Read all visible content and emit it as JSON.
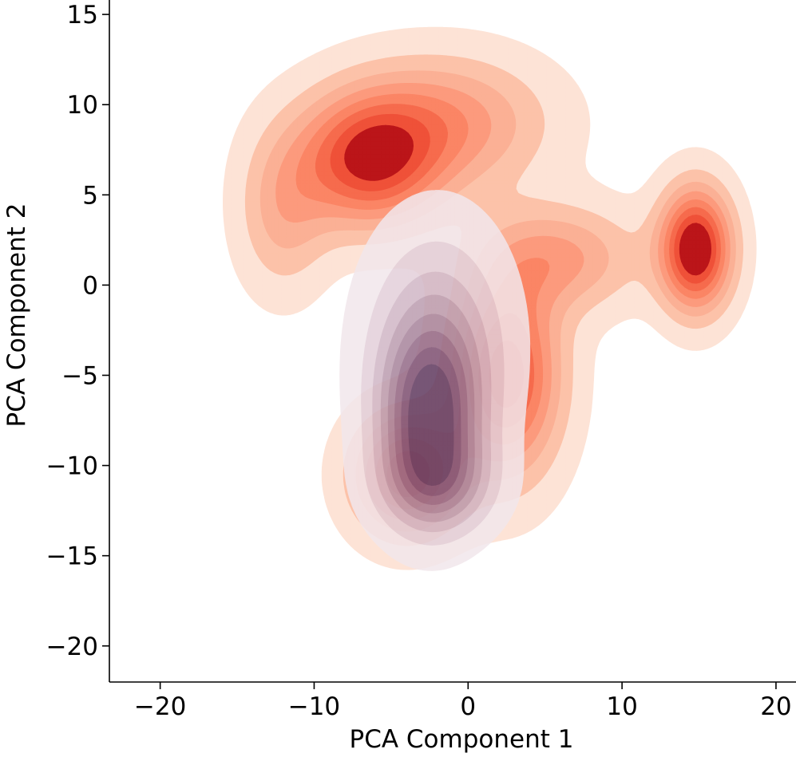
{
  "chart_data": {
    "type": "kde_contour",
    "title": "",
    "xlabel": "PCA Component 1",
    "ylabel": "PCA Component 2",
    "xlim": [
      -23.3,
      21.3
    ],
    "ylim": [
      -22.0,
      15.8
    ],
    "xticks": [
      -20,
      -10,
      0,
      10,
      20
    ],
    "xtick_labels": [
      "−20",
      "−10",
      "0",
      "10",
      "20"
    ],
    "yticks": [
      15,
      10,
      5,
      0,
      -5,
      -10,
      -15,
      -20
    ],
    "ytick_labels": [
      "15",
      "10",
      "5",
      "0",
      "−5",
      "−10",
      "−15",
      "−20"
    ],
    "grid": false,
    "legend": "none",
    "spines": [
      "left",
      "bottom"
    ],
    "series": [
      {
        "colormap": "Reds",
        "colors": [
          "#fde3d6",
          "#fcc2a9",
          "#fbb095",
          "#fc9a7d",
          "#fb8565",
          "#f66b4d",
          "#ef5138",
          "#bb1519"
        ],
        "modes": [
          {
            "center": [
              -6.5,
              6.8
            ],
            "spread": [
              3.2,
              2.5
            ],
            "peak": 0.78
          },
          {
            "center": [
              14.8,
              2.0
            ],
            "spread": [
              1.6,
              2.3
            ],
            "peak": 1.0
          },
          {
            "center": [
              2.5,
              -5.0
            ],
            "spread": [
              2.4,
              3.8
            ],
            "peak": 0.8
          },
          {
            "center": [
              -4.0,
              -10.5
            ],
            "spread": [
              2.4,
              2.3
            ],
            "peak": 0.7
          },
          {
            "center": [
              -1.5,
              9.0
            ],
            "spread": [
              4.5,
              2.5
            ],
            "peak": 0.45
          },
          {
            "center": [
              6.0,
              1.5
            ],
            "spread": [
              3.5,
              2.0
            ],
            "peak": 0.4
          },
          {
            "center": [
              -12.0,
              4.0
            ],
            "spread": [
              2.0,
              3.0
            ],
            "peak": 0.3
          }
        ]
      },
      {
        "colormap": "Purples",
        "colors": [
          "#f2e7ec",
          "#e3d0da",
          "#d1b7c6",
          "#bc9db0",
          "#a8849c",
          "#946a88",
          "#7d5377",
          "#603e66"
        ],
        "modes": [
          {
            "center": [
              -2.5,
              -7.5
            ],
            "spread": [
              2.2,
              3.4
            ],
            "peak": 1.0
          },
          {
            "center": [
              -2.0,
              -3.0
            ],
            "spread": [
              3.0,
              4.2
            ],
            "peak": 0.45
          },
          {
            "center": [
              -2.0,
              -11.0
            ],
            "spread": [
              2.5,
              1.8
            ],
            "peak": 0.45
          }
        ]
      }
    ]
  }
}
